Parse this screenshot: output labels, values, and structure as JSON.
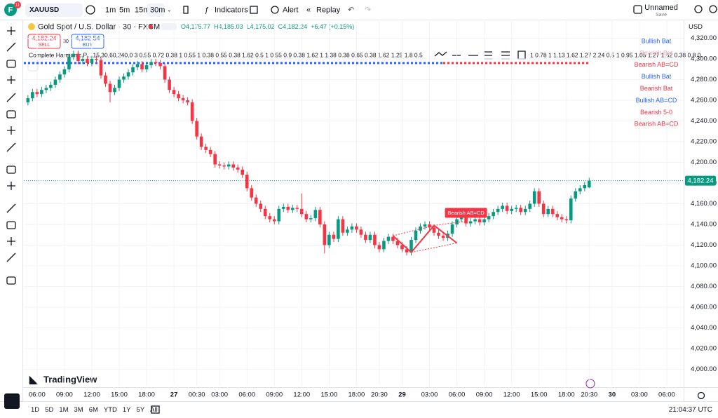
{
  "toolbar": {
    "symbol": "XAUUSD",
    "intervals": [
      "1m",
      "5m",
      "15m",
      "30m"
    ],
    "active_interval": 3,
    "indicators": "Indicators",
    "alert": "Alert",
    "replay": "Replay",
    "layout_name": "Unnamed",
    "save": "Save",
    "avatar": "F",
    "badge": "11"
  },
  "header": {
    "instrument": "Gold Spot / U.S. Dollar · 30 · FXCM",
    "ohlc": [
      "O4,175.77",
      "H4,185.03",
      "L4,175.02",
      "C4,182.24"
    ],
    "change": "+6.47 (+0.15%)",
    "sell_price": "4,182.24",
    "sell": "SELL",
    "spread": "30",
    "buy_price": "4,182.54",
    "buy": "BUY",
    "indicator": "Complete Harmonic P... 15,30,60,240,0 3 0.55 0.72 0.38 1 0.55 1 0.38 0.55 0.38 1.62 0.5 1 0.55 0.9 0.38 1.62 1 1.38 0.38 0.65 0.38 1.62 1.25 1.8 0.5",
    "indicator_tail": "1 0.78 1 1.13 1.62 1.27 2.24 0.5 1 0.95 1.05 1.27 1.62 0.38 0.8 0."
  },
  "chart_data": {
    "type": "candlestick",
    "currency": "USD",
    "up_color": "#089981",
    "down_color": "#f23645",
    "grid": true,
    "x": [
      -2,
      -1,
      0,
      1,
      2,
      3,
      4,
      5,
      6,
      7,
      8,
      9,
      10,
      11,
      12,
      13,
      14,
      15,
      16,
      17,
      18,
      19,
      20,
      21,
      22,
      23,
      24,
      25,
      26,
      27,
      28,
      29,
      30,
      31,
      32,
      33,
      34,
      35,
      36,
      37,
      38,
      39,
      40,
      41,
      42,
      43,
      44,
      45,
      46,
      47,
      48,
      49,
      50,
      51,
      52,
      53,
      54,
      55,
      56,
      57,
      58,
      59,
      60,
      61,
      62,
      63,
      64,
      65,
      66,
      67,
      68,
      69,
      70,
      71,
      72,
      73,
      74,
      75,
      76,
      77,
      78,
      79,
      80,
      81,
      82,
      83,
      84,
      85,
      86,
      87,
      88,
      89,
      90,
      91,
      92,
      93,
      94,
      95,
      96,
      97,
      98,
      99,
      100,
      101,
      102,
      103,
      104,
      105,
      106,
      107,
      108,
      109,
      110,
      111,
      112,
      113,
      114,
      115,
      116,
      117,
      118,
      119,
      120,
      121
    ],
    "open": [
      4258,
      4262,
      4268,
      4266,
      4270,
      4272,
      4275,
      4280,
      4285,
      4290,
      4302,
      4305,
      4298,
      4300,
      4296,
      4300,
      4299,
      4284,
      4276,
      4268,
      4272,
      4280,
      4283,
      4287,
      4292,
      4295,
      4290,
      4294,
      4297,
      4296,
      4293,
      4280,
      4270,
      4266,
      4262,
      4260,
      4258,
      4240,
      4225,
      4215,
      4212,
      4208,
      4198,
      4197,
      4196,
      4198,
      4195,
      4193,
      4188,
      4175,
      4166,
      4160,
      4155,
      4148,
      4145,
      4143,
      4155,
      4157,
      4154,
      4156,
      4155,
      4150,
      4145,
      4146,
      4154,
      4140,
      4120,
      4130,
      4126,
      4145,
      4132,
      4135,
      4138,
      4135,
      4130,
      4125,
      4130,
      4120,
      4116,
      4124,
      4128,
      4124,
      4120,
      4116,
      4113,
      4125,
      4134,
      4138,
      4140,
      4137,
      4132,
      4129,
      4127,
      4131,
      4140,
      4145,
      4148,
      4141,
      4143,
      4145,
      4142,
      4145,
      4148,
      4152,
      4155,
      4158,
      4153,
      4155,
      4156,
      4152,
      4155,
      4160,
      4172,
      4160,
      4150,
      4155,
      4150,
      4147,
      4145,
      4144,
      4165,
      4172,
      4175,
      4175.77
    ],
    "high": [
      4265,
      4271,
      4271,
      4273,
      4275,
      4278,
      4283,
      4288,
      4293,
      4305,
      4308,
      4308,
      4303,
      4303,
      4303,
      4303,
      4302,
      4287,
      4279,
      4275,
      4283,
      4286,
      4290,
      4295,
      4298,
      4298,
      4297,
      4300,
      4300,
      4299,
      4296,
      4283,
      4273,
      4269,
      4265,
      4263,
      4261,
      4243,
      4228,
      4218,
      4215,
      4211,
      4201,
      4200,
      4201,
      4201,
      4198,
      4196,
      4191,
      4178,
      4169,
      4163,
      4158,
      4151,
      4148,
      4158,
      4160,
      4160,
      4159,
      4159,
      4170,
      4153,
      4149,
      4157,
      4157,
      4143,
      4133,
      4133,
      4148,
      4148,
      4138,
      4141,
      4141,
      4138,
      4133,
      4133,
      4133,
      4123,
      4127,
      4131,
      4131,
      4127,
      4123,
      4119,
      4128,
      4137,
      4141,
      4143,
      4143,
      4140,
      4135,
      4132,
      4134,
      4143,
      4148,
      4151,
      4151,
      4146,
      4148,
      4148,
      4148,
      4151,
      4155,
      4158,
      4161,
      4161,
      4158,
      4159,
      4159,
      4158,
      4163,
      4175,
      4175,
      4163,
      4158,
      4158,
      4153,
      4150,
      4148,
      4168,
      4175,
      4178,
      4181,
      4185.03
    ],
    "low": [
      4255,
      4259,
      4263,
      4263,
      4267,
      4269,
      4272,
      4277,
      4282,
      4287,
      4299,
      4295,
      4295,
      4293,
      4293,
      4296,
      4281,
      4273,
      4258,
      4265,
      4269,
      4277,
      4280,
      4284,
      4289,
      4287,
      4287,
      4291,
      4293,
      4290,
      4277,
      4267,
      4263,
      4259,
      4257,
      4255,
      4237,
      4222,
      4212,
      4209,
      4205,
      4195,
      4194,
      4193,
      4193,
      4192,
      4190,
      4185,
      4172,
      4163,
      4157,
      4152,
      4145,
      4142,
      4140,
      4140,
      4152,
      4151,
      4151,
      4152,
      4147,
      4142,
      4142,
      4143,
      4137,
      4112,
      4117,
      4123,
      4123,
      4129,
      4129,
      4132,
      4132,
      4127,
      4122,
      4122,
      4117,
      4113,
      4113,
      4121,
      4121,
      4117,
      4113,
      4110,
      4110,
      4122,
      4131,
      4135,
      4134,
      4129,
      4126,
      4124,
      4124,
      4128,
      4137,
      4142,
      4138,
      4138,
      4140,
      4139,
      4139,
      4142,
      4145,
      4149,
      4152,
      4150,
      4150,
      4152,
      4149,
      4149,
      4152,
      4157,
      4157,
      4147,
      4147,
      4147,
      4144,
      4142,
      4141,
      4141,
      4162,
      4169,
      4172,
      4175.02
    ],
    "close": [
      4262,
      4268,
      4266,
      4270,
      4272,
      4275,
      4280,
      4285,
      4290,
      4302,
      4305,
      4298,
      4300,
      4296,
      4300,
      4299,
      4284,
      4276,
      4268,
      4272,
      4280,
      4283,
      4287,
      4292,
      4295,
      4290,
      4294,
      4297,
      4296,
      4293,
      4280,
      4270,
      4266,
      4262,
      4260,
      4258,
      4240,
      4225,
      4215,
      4212,
      4208,
      4198,
      4197,
      4196,
      4198,
      4195,
      4193,
      4188,
      4175,
      4166,
      4160,
      4155,
      4148,
      4145,
      4143,
      4155,
      4157,
      4154,
      4156,
      4155,
      4150,
      4145,
      4146,
      4154,
      4140,
      4120,
      4130,
      4126,
      4145,
      4132,
      4135,
      4138,
      4135,
      4130,
      4125,
      4130,
      4120,
      4116,
      4124,
      4128,
      4124,
      4120,
      4116,
      4113,
      4125,
      4134,
      4138,
      4140,
      4137,
      4132,
      4129,
      4127,
      4131,
      4140,
      4145,
      4148,
      4141,
      4143,
      4145,
      4142,
      4145,
      4148,
      4152,
      4155,
      4158,
      4153,
      4155,
      4156,
      4152,
      4155,
      4160,
      4172,
      4160,
      4150,
      4155,
      4150,
      4147,
      4145,
      4144,
      4165,
      4172,
      4175,
      4178,
      4182.24
    ],
    "xlim": [
      -2.9,
      141.7
    ],
    "ylim": [
      3984,
      4338
    ],
    "xticks": [
      {
        "value": 0,
        "label": "06:00"
      },
      {
        "value": 6,
        "label": "09:00"
      },
      {
        "value": 12,
        "label": "12:00"
      },
      {
        "value": 18,
        "label": "15:00"
      },
      {
        "value": 24,
        "label": "18:00"
      },
      {
        "value": 30,
        "label": "27"
      },
      {
        "value": 35,
        "label": "00:30"
      },
      {
        "value": 40,
        "label": "03:00"
      },
      {
        "value": 46,
        "label": "06:00"
      },
      {
        "value": 52,
        "label": "09:00"
      },
      {
        "value": 58,
        "label": "12:00"
      },
      {
        "value": 64,
        "label": "15:00"
      },
      {
        "value": 70,
        "label": "18:00"
      },
      {
        "value": 75,
        "label": "20:30"
      },
      {
        "value": 80,
        "label": "29"
      },
      {
        "value": 86,
        "label": "03:00"
      },
      {
        "value": 92,
        "label": "06:00"
      },
      {
        "value": 98,
        "label": "09:00"
      },
      {
        "value": 104,
        "label": "12:00"
      },
      {
        "value": 110,
        "label": "15:00"
      },
      {
        "value": 116,
        "label": "18:00"
      },
      {
        "value": 121,
        "label": "20:30"
      },
      {
        "value": 126,
        "label": "30"
      },
      {
        "value": 132,
        "label": "03:00"
      },
      {
        "value": 138,
        "label": "06:00"
      }
    ],
    "yticks": [
      {
        "value": 4000,
        "label": "4,000.00"
      },
      {
        "value": 4020,
        "label": "4,020.00"
      },
      {
        "value": 4040,
        "label": "4,040.00"
      },
      {
        "value": 4060,
        "label": "4,060.00"
      },
      {
        "value": 4080,
        "label": "4,080.00"
      },
      {
        "value": 4100,
        "label": "4,100.00"
      },
      {
        "value": 4120,
        "label": "4,120.00"
      },
      {
        "value": 4140,
        "label": "4,140.00"
      },
      {
        "value": 4160,
        "label": "4,160.00"
      },
      {
        "value": 4180,
        "label": "4,180.00"
      },
      {
        "value": 4200,
        "label": "4,200.00"
      },
      {
        "value": 4220,
        "label": "4,220.00"
      },
      {
        "value": 4240,
        "label": "4,240.00"
      },
      {
        "value": 4260,
        "label": "4,260.00"
      },
      {
        "value": 4280,
        "label": "4,280.00"
      },
      {
        "value": 4300,
        "label": "4,300.00"
      },
      {
        "value": 4320,
        "label": "4,320.00"
      }
    ],
    "last_price": 4182.24,
    "last_price_label": "4,182.24",
    "levels": [
      {
        "value": 4296,
        "color": "#2962ff",
        "x": [
          -2.9,
          89
        ]
      },
      {
        "value": 4296,
        "color": "#f23645",
        "x": [
          89,
          121
        ]
      }
    ],
    "pattern": {
      "name": "Bearish AB=CD",
      "color": "#f23645",
      "x": [
        78,
        82,
        87,
        92,
        94
      ],
      "y": [
        4129,
        4113,
        4139,
        4122,
        4143
      ]
    },
    "pattern_labels": [
      {
        "text": "Bullish Bat",
        "color": "#2962ff"
      },
      {
        "text": "Bearish Bat",
        "color": "#f7a9b0"
      },
      {
        "text": "Bearish AB=CD",
        "color": "#f23645"
      },
      {
        "text": "Bullish Bat",
        "color": "#2962ff"
      },
      {
        "text": "Bearish Bat",
        "color": "#f23645"
      },
      {
        "text": "Bullish AB=CD",
        "color": "#2962ff"
      },
      {
        "text": "Bearish 5-0",
        "color": "#f23645"
      },
      {
        "text": "Bearish AB=CD",
        "color": "#f23645"
      }
    ],
    "logo": "TradingView"
  },
  "bottom_bar": {
    "ranges": [
      "1D",
      "5D",
      "1M",
      "3M",
      "6M",
      "YTD",
      "1Y",
      "5Y",
      "All"
    ],
    "clock": "21:04:37 UTC"
  }
}
